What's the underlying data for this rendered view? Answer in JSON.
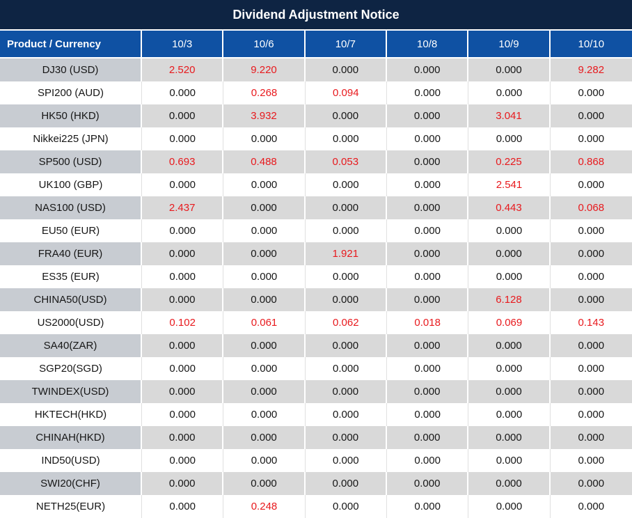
{
  "title": "Dividend Adjustment Notice",
  "colors": {
    "title_bg": "#0e2443",
    "header_bg": "#0f51a3",
    "row_gray": "#d9d9d9",
    "label_gray": "#c8ccd2",
    "red": "#e8191d"
  },
  "table": {
    "header": [
      "Product / Currency",
      "10/3",
      "10/6",
      "10/7",
      "10/8",
      "10/9",
      "10/10"
    ],
    "rows": [
      {
        "label": "DJ30 (USD)",
        "values": [
          "2.520",
          "9.220",
          "0.000",
          "0.000",
          "0.000",
          "9.282"
        ],
        "red": [
          1,
          1,
          0,
          0,
          0,
          1
        ]
      },
      {
        "label": "SPI200 (AUD)",
        "values": [
          "0.000",
          "0.268",
          "0.094",
          "0.000",
          "0.000",
          "0.000"
        ],
        "red": [
          0,
          1,
          1,
          0,
          0,
          0
        ]
      },
      {
        "label": "HK50 (HKD)",
        "values": [
          "0.000",
          "3.932",
          "0.000",
          "0.000",
          "3.041",
          "0.000"
        ],
        "red": [
          0,
          1,
          0,
          0,
          1,
          0
        ]
      },
      {
        "label": "Nikkei225 (JPN)",
        "values": [
          "0.000",
          "0.000",
          "0.000",
          "0.000",
          "0.000",
          "0.000"
        ],
        "red": [
          0,
          0,
          0,
          0,
          0,
          0
        ]
      },
      {
        "label": "SP500 (USD)",
        "values": [
          "0.693",
          "0.488",
          "0.053",
          "0.000",
          "0.225",
          "0.868"
        ],
        "red": [
          1,
          1,
          1,
          0,
          1,
          1
        ]
      },
      {
        "label": "UK100 (GBP)",
        "values": [
          "0.000",
          "0.000",
          "0.000",
          "0.000",
          "2.541",
          "0.000"
        ],
        "red": [
          0,
          0,
          0,
          0,
          1,
          0
        ]
      },
      {
        "label": "NAS100 (USD)",
        "values": [
          "2.437",
          "0.000",
          "0.000",
          "0.000",
          "0.443",
          "0.068"
        ],
        "red": [
          1,
          0,
          0,
          0,
          1,
          1
        ]
      },
      {
        "label": "EU50 (EUR)",
        "values": [
          "0.000",
          "0.000",
          "0.000",
          "0.000",
          "0.000",
          "0.000"
        ],
        "red": [
          0,
          0,
          0,
          0,
          0,
          0
        ]
      },
      {
        "label": "FRA40 (EUR)",
        "values": [
          "0.000",
          "0.000",
          "1.921",
          "0.000",
          "0.000",
          "0.000"
        ],
        "red": [
          0,
          0,
          1,
          0,
          0,
          0
        ]
      },
      {
        "label": "ES35 (EUR)",
        "values": [
          "0.000",
          "0.000",
          "0.000",
          "0.000",
          "0.000",
          "0.000"
        ],
        "red": [
          0,
          0,
          0,
          0,
          0,
          0
        ]
      },
      {
        "label": "CHINA50(USD)",
        "values": [
          "0.000",
          "0.000",
          "0.000",
          "0.000",
          "6.128",
          "0.000"
        ],
        "red": [
          0,
          0,
          0,
          0,
          1,
          0
        ]
      },
      {
        "label": "US2000(USD)",
        "values": [
          "0.102",
          "0.061",
          "0.062",
          "0.018",
          "0.069",
          "0.143"
        ],
        "red": [
          1,
          1,
          1,
          1,
          1,
          1
        ]
      },
      {
        "label": "SA40(ZAR)",
        "values": [
          "0.000",
          "0.000",
          "0.000",
          "0.000",
          "0.000",
          "0.000"
        ],
        "red": [
          0,
          0,
          0,
          0,
          0,
          0
        ]
      },
      {
        "label": "SGP20(SGD)",
        "values": [
          "0.000",
          "0.000",
          "0.000",
          "0.000",
          "0.000",
          "0.000"
        ],
        "red": [
          0,
          0,
          0,
          0,
          0,
          0
        ]
      },
      {
        "label": "TWINDEX(USD)",
        "values": [
          "0.000",
          "0.000",
          "0.000",
          "0.000",
          "0.000",
          "0.000"
        ],
        "red": [
          0,
          0,
          0,
          0,
          0,
          0
        ]
      },
      {
        "label": "HKTECH(HKD)",
        "values": [
          "0.000",
          "0.000",
          "0.000",
          "0.000",
          "0.000",
          "0.000"
        ],
        "red": [
          0,
          0,
          0,
          0,
          0,
          0
        ]
      },
      {
        "label": "CHINAH(HKD)",
        "values": [
          "0.000",
          "0.000",
          "0.000",
          "0.000",
          "0.000",
          "0.000"
        ],
        "red": [
          0,
          0,
          0,
          0,
          0,
          0
        ]
      },
      {
        "label": "IND50(USD)",
        "values": [
          "0.000",
          "0.000",
          "0.000",
          "0.000",
          "0.000",
          "0.000"
        ],
        "red": [
          0,
          0,
          0,
          0,
          0,
          0
        ]
      },
      {
        "label": "SWI20(CHF)",
        "values": [
          "0.000",
          "0.000",
          "0.000",
          "0.000",
          "0.000",
          "0.000"
        ],
        "red": [
          0,
          0,
          0,
          0,
          0,
          0
        ]
      },
      {
        "label": "NETH25(EUR)",
        "values": [
          "0.000",
          "0.248",
          "0.000",
          "0.000",
          "0.000",
          "0.000"
        ],
        "red": [
          0,
          1,
          0,
          0,
          0,
          0
        ]
      }
    ]
  }
}
